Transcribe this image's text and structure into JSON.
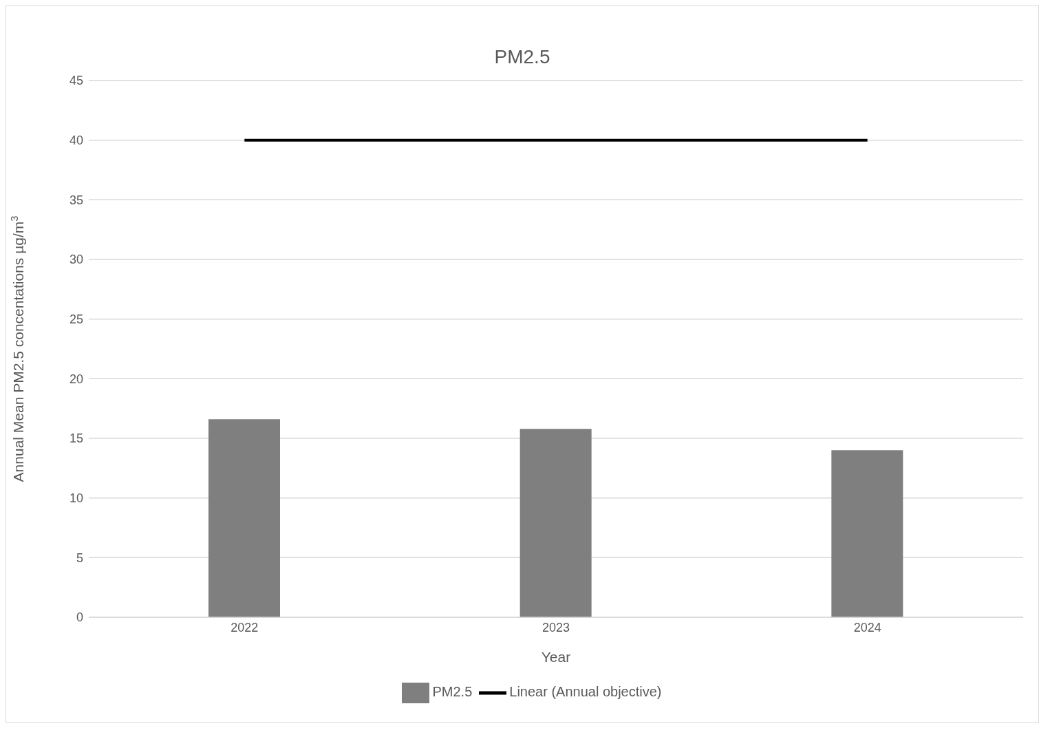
{
  "chart_data": {
    "type": "bar",
    "title": "PM2.5",
    "xlabel": "Year",
    "ylabel": "Annual Mean PM2.5 concentations µg/m$^{3}$",
    "categories": [
      "2022",
      "2023",
      "2024"
    ],
    "series": [
      {
        "name": "PM2.5",
        "color": "#7f7f7f",
        "values": [
          16.6,
          15.8,
          14.0
        ]
      },
      {
        "name": "Linear (Annual objective)",
        "type": "line",
        "color": "#000000",
        "values": [
          40,
          40,
          40
        ]
      }
    ],
    "ylim": [
      0,
      45
    ],
    "yticks": [
      0,
      5,
      10,
      15,
      20,
      25,
      30,
      35,
      40,
      45
    ],
    "grid": "y",
    "legend": "bottom",
    "marker": "none",
    "line_style": "solid"
  }
}
